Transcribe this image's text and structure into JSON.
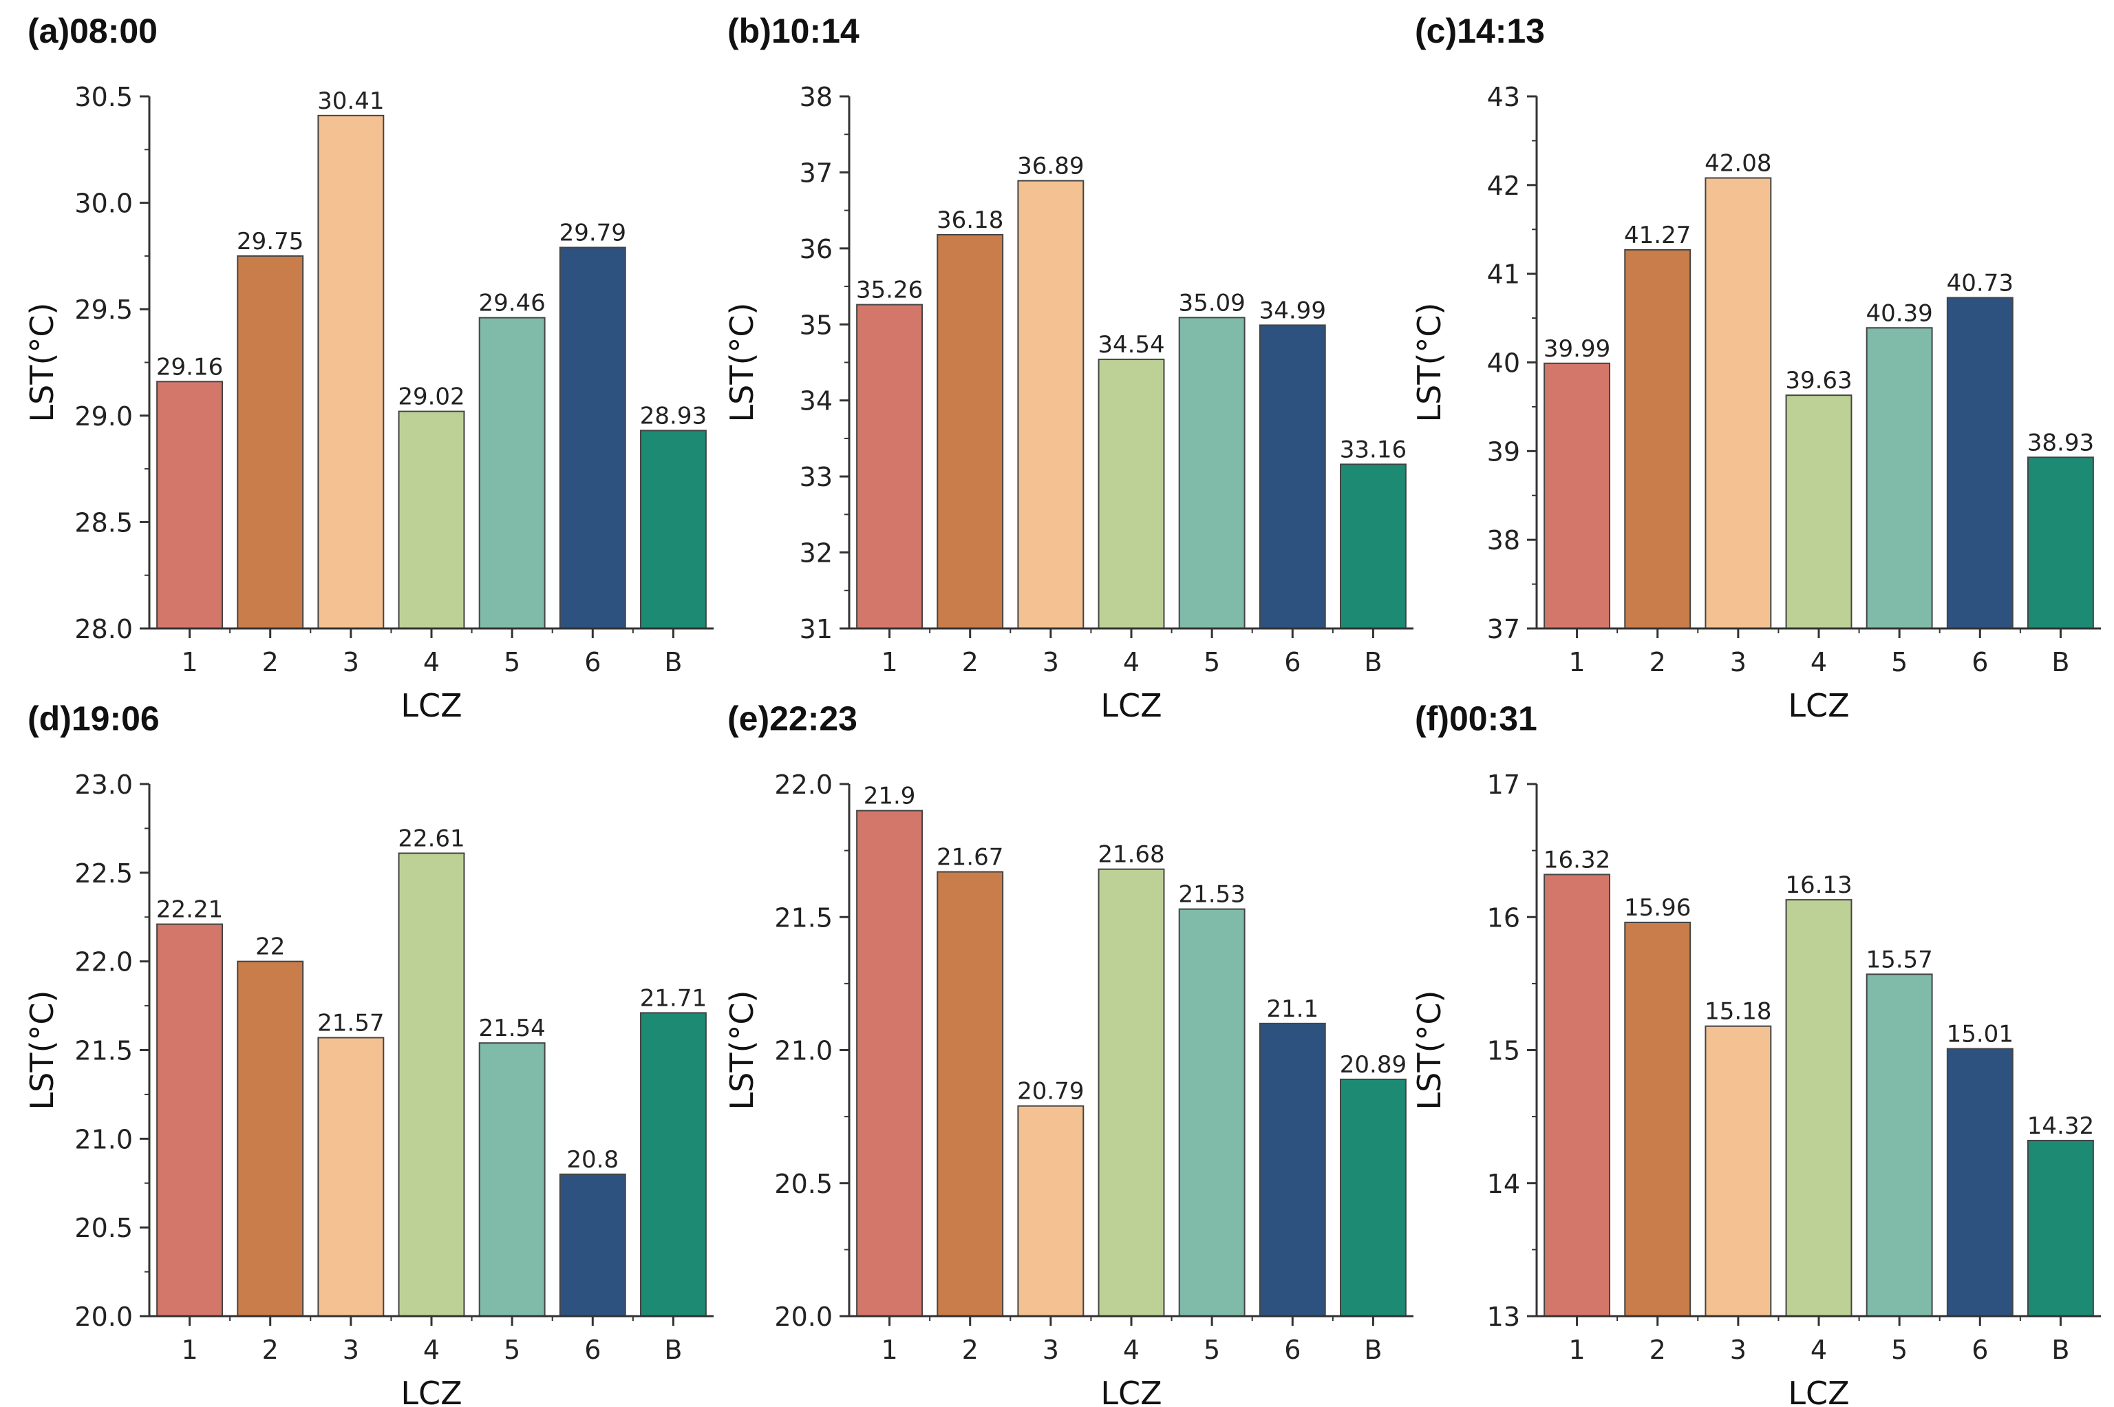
{
  "colors": [
    "#D4776B",
    "#C87D4A",
    "#F4C193",
    "#BDD197",
    "#80BBAA",
    "#2D5280",
    "#1D8A74"
  ],
  "chart_data": [
    {
      "type": "bar",
      "title": "(a)08:00",
      "xlabel": "LCZ",
      "ylabel": "LST(°C)",
      "categories": [
        "1",
        "2",
        "3",
        "4",
        "5",
        "6",
        "B"
      ],
      "values": [
        29.16,
        29.75,
        30.41,
        29.02,
        29.46,
        29.79,
        28.93
      ],
      "ylim": [
        28.0,
        30.5
      ],
      "yticks": [
        "28.0",
        "28.5",
        "29.0",
        "29.5",
        "30.0",
        "30.5"
      ],
      "labels": [
        "29.16",
        "29.75",
        "30.41",
        "29.02",
        "29.46",
        "29.79",
        "28.93"
      ]
    },
    {
      "type": "bar",
      "title": "(b)10:14",
      "xlabel": "LCZ",
      "ylabel": "LST(°C)",
      "categories": [
        "1",
        "2",
        "3",
        "4",
        "5",
        "6",
        "B"
      ],
      "values": [
        35.26,
        36.18,
        36.89,
        34.54,
        35.09,
        34.99,
        33.16
      ],
      "ylim": [
        31,
        38
      ],
      "yticks": [
        "31",
        "32",
        "33",
        "34",
        "35",
        "36",
        "37",
        "38"
      ],
      "labels": [
        "35.26",
        "36.18",
        "36.89",
        "34.54",
        "35.09",
        "34.99",
        "33.16"
      ]
    },
    {
      "type": "bar",
      "title": "(c)14:13",
      "xlabel": "LCZ",
      "ylabel": "LST(°C)",
      "categories": [
        "1",
        "2",
        "3",
        "4",
        "5",
        "6",
        "B"
      ],
      "values": [
        39.99,
        41.27,
        42.08,
        39.63,
        40.39,
        40.73,
        38.93
      ],
      "ylim": [
        37,
        43
      ],
      "yticks": [
        "37",
        "38",
        "39",
        "40",
        "41",
        "42",
        "43"
      ],
      "labels": [
        "39.99",
        "41.27",
        "42.08",
        "39.63",
        "40.39",
        "40.73",
        "38.93"
      ]
    },
    {
      "type": "bar",
      "title": "(d)19:06",
      "xlabel": "LCZ",
      "ylabel": "LST(°C)",
      "categories": [
        "1",
        "2",
        "3",
        "4",
        "5",
        "6",
        "B"
      ],
      "values": [
        22.21,
        22,
        21.57,
        22.61,
        21.54,
        20.8,
        21.71
      ],
      "ylim": [
        20.0,
        23.0
      ],
      "yticks": [
        "20.0",
        "20.5",
        "21.0",
        "21.5",
        "22.0",
        "22.5",
        "23.0"
      ],
      "labels": [
        "22.21",
        "22",
        "21.57",
        "22.61",
        "21.54",
        "20.8",
        "21.71"
      ]
    },
    {
      "type": "bar",
      "title": "(e)22:23",
      "xlabel": "LCZ",
      "ylabel": "LST(°C)",
      "categories": [
        "1",
        "2",
        "3",
        "4",
        "5",
        "6",
        "B"
      ],
      "values": [
        21.9,
        21.67,
        20.79,
        21.68,
        21.53,
        21.1,
        20.89
      ],
      "ylim": [
        20.0,
        22.0
      ],
      "yticks": [
        "20.0",
        "20.5",
        "21.0",
        "21.5",
        "22.0"
      ],
      "labels": [
        "21.9",
        "21.67",
        "20.79",
        "21.68",
        "21.53",
        "21.1",
        "20.89"
      ]
    },
    {
      "type": "bar",
      "title": "(f)00:31",
      "xlabel": "LCZ",
      "ylabel": "LST(°C)",
      "categories": [
        "1",
        "2",
        "3",
        "4",
        "5",
        "6",
        "B"
      ],
      "values": [
        16.32,
        15.96,
        15.18,
        16.13,
        15.57,
        15.01,
        14.32
      ],
      "ylim": [
        13,
        17
      ],
      "yticks": [
        "13",
        "14",
        "15",
        "16",
        "17"
      ],
      "labels": [
        "16.32",
        "15.96",
        "15.18",
        "16.13",
        "15.57",
        "15.01",
        "14.32"
      ]
    }
  ]
}
